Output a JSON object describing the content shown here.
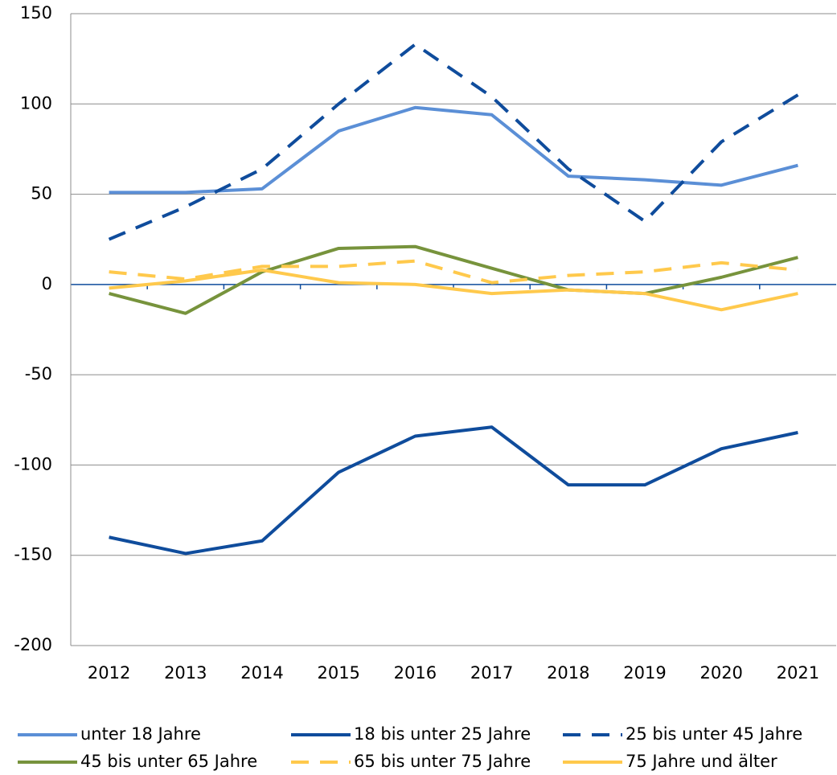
{
  "chart_data": {
    "type": "line",
    "categories": [
      "2012",
      "2013",
      "2014",
      "2015",
      "2016",
      "2017",
      "2018",
      "2019",
      "2020",
      "2021"
    ],
    "series": [
      {
        "name": "unter 18 Jahre",
        "color": "#5b8fd6",
        "line_style": "solid",
        "values": [
          51,
          51,
          53,
          85,
          98,
          94,
          60,
          58,
          55,
          66
        ]
      },
      {
        "name": "18 bis unter 25 Jahre",
        "color": "#0f4c9c",
        "line_style": "solid",
        "values": [
          -140,
          -149,
          -142,
          -104,
          -84,
          -79,
          -111,
          -111,
          -91,
          -82
        ]
      },
      {
        "name": "25 bis unter 45 Jahre",
        "color": "#0f4c9c",
        "line_style": "dashed",
        "values": [
          25,
          43,
          64,
          100,
          133,
          104,
          64,
          35,
          79,
          105
        ]
      },
      {
        "name": "45 bis unter 65 Jahre",
        "color": "#77933c",
        "line_style": "solid",
        "values": [
          -5,
          -16,
          7,
          20,
          21,
          9,
          -3,
          -5,
          4,
          15
        ]
      },
      {
        "name": "65 bis unter 75 Jahre",
        "color": "#ffc94c",
        "line_style": "dashed",
        "values": [
          7,
          3,
          10,
          10,
          13,
          1,
          5,
          7,
          12,
          8
        ]
      },
      {
        "name": "75 Jahre und älter",
        "color": "#ffc94c",
        "line_style": "solid",
        "values": [
          -2,
          2,
          8,
          1,
          0,
          -5,
          -3,
          -5,
          -14,
          -5
        ]
      }
    ],
    "ylim": [
      -200,
      150
    ],
    "yticks": [
      -200,
      -150,
      -100,
      -50,
      0,
      50,
      100,
      150
    ],
    "grid": true,
    "zero_line_color": "#0f4c9c",
    "legend_position": "bottom"
  }
}
